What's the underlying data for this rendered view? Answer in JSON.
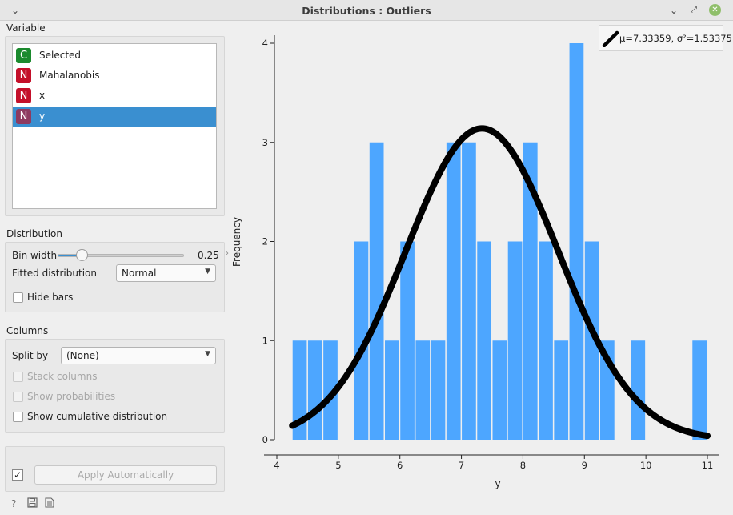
{
  "window": {
    "title": "Distributions : Outliers",
    "menu_icon": "chevron-down-icon",
    "minimize_icon": "minimize-icon",
    "maximize_icon": "maximize-icon",
    "close_icon": "close-icon"
  },
  "variable_section": {
    "label": "Variable",
    "items": [
      {
        "badge": "C",
        "label": "Selected",
        "color": "#1b8a2e",
        "selected": false
      },
      {
        "badge": "N",
        "label": "Mahalanobis",
        "color": "#c4102a",
        "selected": false
      },
      {
        "badge": "N",
        "label": "x",
        "color": "#c4102a",
        "selected": false
      },
      {
        "badge": "N",
        "label": "y",
        "color": "#8e3a60",
        "selected": true
      }
    ]
  },
  "distribution_section": {
    "label": "Distribution",
    "bin_width_label": "Bin width",
    "bin_width_value": "0.25",
    "bin_width_fraction": 0.15,
    "fitted_label": "Fitted distribution",
    "fitted_value": "Normal",
    "hide_bars_label": "Hide bars"
  },
  "columns_section": {
    "label": "Columns",
    "split_by_label": "Split by",
    "split_by_value": "(None)",
    "stack_columns_label": "Stack columns",
    "show_probabilities_label": "Show probabilities",
    "show_cumulative_label": "Show cumulative distribution"
  },
  "apply": {
    "checkbox_mark": "✓",
    "button_label": "Apply Automatically"
  },
  "footer_icons": [
    "help-icon",
    "save-icon",
    "report-icon"
  ],
  "colors": {
    "bar": "#4da6ff",
    "curve": "#000000",
    "selection": "#3a8fd0"
  },
  "chart_data": {
    "type": "bar",
    "xlabel": "y",
    "ylabel": "Frequency",
    "xlim": [
      4,
      11
    ],
    "ylim": [
      0,
      4
    ],
    "x_ticks": [
      "4",
      "5",
      "6",
      "7",
      "8",
      "9",
      "10",
      "11"
    ],
    "y_ticks": [
      "0",
      "1",
      "2",
      "3",
      "4"
    ],
    "bin_width": 0.25,
    "bins": [
      {
        "start": 4.25,
        "value": 1
      },
      {
        "start": 4.5,
        "value": 1
      },
      {
        "start": 4.75,
        "value": 1
      },
      {
        "start": 5.25,
        "value": 2
      },
      {
        "start": 5.5,
        "value": 3
      },
      {
        "start": 5.75,
        "value": 1
      },
      {
        "start": 6.0,
        "value": 2
      },
      {
        "start": 6.25,
        "value": 1
      },
      {
        "start": 6.5,
        "value": 1
      },
      {
        "start": 6.75,
        "value": 3
      },
      {
        "start": 7.0,
        "value": 3
      },
      {
        "start": 7.25,
        "value": 2
      },
      {
        "start": 7.5,
        "value": 1
      },
      {
        "start": 7.75,
        "value": 2
      },
      {
        "start": 8.0,
        "value": 3
      },
      {
        "start": 8.25,
        "value": 2
      },
      {
        "start": 8.5,
        "value": 1
      },
      {
        "start": 8.75,
        "value": 4
      },
      {
        "start": 9.0,
        "value": 2
      },
      {
        "start": 9.25,
        "value": 1
      },
      {
        "start": 9.75,
        "value": 1
      },
      {
        "start": 10.75,
        "value": 1
      }
    ],
    "fit": {
      "type": "normal",
      "mu": 7.33359,
      "variance": 1.53375,
      "legend": "μ=7.33359, σ²=1.53375"
    },
    "legend_position": "top-right"
  }
}
